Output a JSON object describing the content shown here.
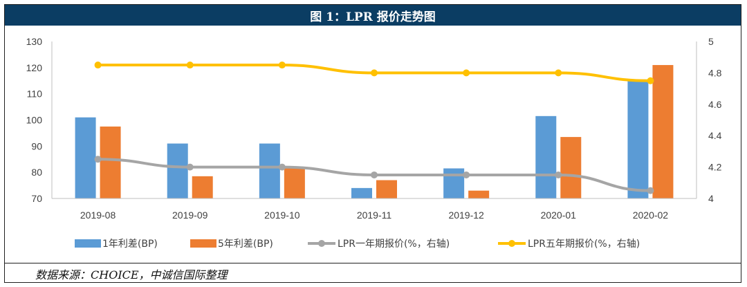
{
  "title": "图 1：LPR 报价走势图",
  "source": "数据来源：CHOICE，中诚信国际整理",
  "chart_data": {
    "type": "bar",
    "categories": [
      "2019-08",
      "2019-09",
      "2019-10",
      "2019-11",
      "2019-12",
      "2020-01",
      "2020-02"
    ],
    "series": [
      {
        "name": "1年利差(BP)",
        "type": "bar",
        "axis": "left",
        "color": "#5b9bd5",
        "values": [
          101,
          91,
          91,
          74,
          81.5,
          101.5,
          115.5
        ]
      },
      {
        "name": "5年利差(BP)",
        "type": "bar",
        "axis": "left",
        "color": "#ed7d31",
        "values": [
          97.5,
          78.5,
          81.5,
          77,
          73,
          93.5,
          121
        ]
      },
      {
        "name": "LPR一年期报价(%，右轴)",
        "type": "line",
        "axis": "right",
        "color": "#a5a5a5",
        "values": [
          4.25,
          4.2,
          4.2,
          4.15,
          4.15,
          4.15,
          4.05
        ]
      },
      {
        "name": "LPR五年期报价(%，右轴)",
        "type": "line",
        "axis": "right",
        "color": "#ffc000",
        "values": [
          4.85,
          4.85,
          4.85,
          4.8,
          4.8,
          4.8,
          4.75
        ]
      }
    ],
    "y_left": {
      "range": [
        70,
        130
      ],
      "ticks": [
        70,
        80,
        90,
        100,
        110,
        120,
        130
      ]
    },
    "y_right": {
      "range": [
        4,
        5
      ],
      "ticks": [
        "4",
        "4.2",
        "4.4",
        "4.6",
        "4.8",
        "5"
      ]
    },
    "grid": false,
    "legend": "bottom"
  }
}
